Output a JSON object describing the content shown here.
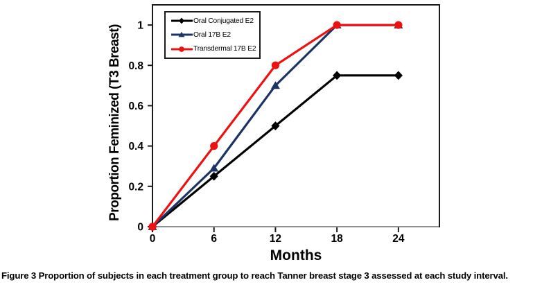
{
  "figure": {
    "caption_label": "Figure 3",
    "caption_text": "Proportion of subjects in each treatment group to reach Tanner breast stage 3 assessed at each study interval."
  },
  "chart_data": {
    "type": "line",
    "xlabel": "Months",
    "ylabel": "Proportion Feminized (T3 Breast)",
    "x": [
      0,
      6,
      12,
      18,
      24
    ],
    "series": [
      {
        "name": "Oral Conjugated E2",
        "color": "#000000",
        "marker": "diamond",
        "values": [
          0,
          0.25,
          0.5,
          0.75,
          0.75
        ]
      },
      {
        "name": "Oral 17B E2",
        "color": "#1B3365",
        "marker": "triangle",
        "values": [
          0,
          0.29,
          0.7,
          1,
          1
        ]
      },
      {
        "name": "Transdermal 17B E2",
        "color": "#EE1111",
        "marker": "circle",
        "values": [
          0,
          0.4,
          0.8,
          1,
          1
        ]
      }
    ],
    "xlim": [
      0,
      28
    ],
    "ylim": [
      0,
      1.1
    ],
    "x_ticks": [
      0,
      6,
      12,
      18,
      24
    ],
    "x_tick_labels": [
      "0",
      "6",
      "12",
      "18",
      "24"
    ],
    "y_ticks": [
      0,
      0.2,
      0.4,
      0.6,
      0.8,
      1
    ],
    "y_tick_labels": [
      "0",
      "0.2",
      "0.4",
      "0.6",
      "0.8",
      "1"
    ],
    "grid": false,
    "legend_position": "top-left-inside",
    "axis_color": "#1a1a1a",
    "x_axis_line_color": "#8f8f8f"
  }
}
